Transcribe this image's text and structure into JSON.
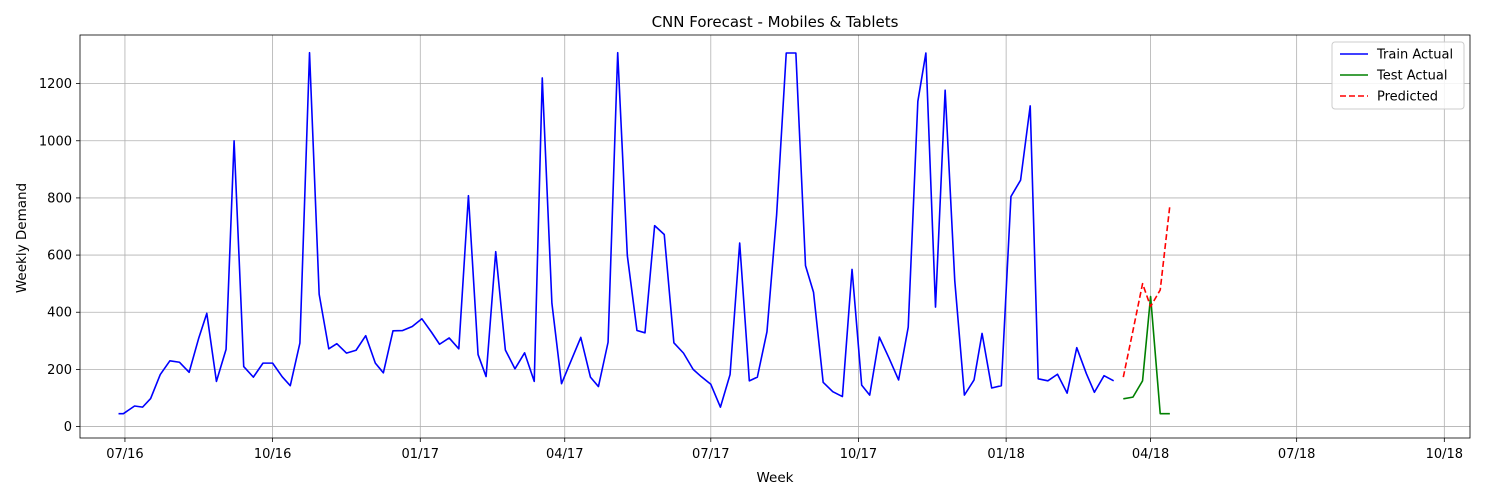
{
  "chart_data": {
    "type": "line",
    "title": "CNN Forecast - Mobiles & Tablets",
    "xlabel": "Week",
    "ylabel": "Weekly Demand",
    "x_axis": "date",
    "xlim": [
      "2016-06-03",
      "2018-10-17"
    ],
    "ylim": [
      -40,
      1370
    ],
    "grid": true,
    "legend_position": "top-right",
    "x_ticks": [
      {
        "date": "2016-07-01",
        "label": "07/16"
      },
      {
        "date": "2016-10-01",
        "label": "10/16"
      },
      {
        "date": "2017-01-01",
        "label": "01/17"
      },
      {
        "date": "2017-04-01",
        "label": "04/17"
      },
      {
        "date": "2017-07-01",
        "label": "07/17"
      },
      {
        "date": "2017-10-01",
        "label": "10/17"
      },
      {
        "date": "2018-01-01",
        "label": "01/18"
      },
      {
        "date": "2018-04-01",
        "label": "04/18"
      },
      {
        "date": "2018-07-01",
        "label": "07/18"
      },
      {
        "date": "2018-10-01",
        "label": "10/18"
      }
    ],
    "y_ticks": [
      0,
      200,
      400,
      600,
      800,
      1000,
      1200
    ],
    "series": [
      {
        "name": "Train Actual",
        "color": "#0000ff",
        "style": "solid",
        "points": [
          [
            "2016-06-27",
            45
          ],
          [
            "2016-06-30",
            45
          ],
          [
            "2016-07-07",
            72
          ],
          [
            "2016-07-12",
            68
          ],
          [
            "2016-07-17",
            98
          ],
          [
            "2016-07-23",
            182
          ],
          [
            "2016-07-29",
            230
          ],
          [
            "2016-08-04",
            225
          ],
          [
            "2016-08-10",
            190
          ],
          [
            "2016-08-16",
            310
          ],
          [
            "2016-08-21",
            396
          ],
          [
            "2016-08-27",
            158
          ],
          [
            "2016-09-02",
            270
          ],
          [
            "2016-09-07",
            1000
          ],
          [
            "2016-09-13",
            210
          ],
          [
            "2016-09-19",
            173
          ],
          [
            "2016-09-25",
            222
          ],
          [
            "2016-10-01",
            222
          ],
          [
            "2016-10-07",
            174
          ],
          [
            "2016-10-12",
            143
          ],
          [
            "2016-10-18",
            292
          ],
          [
            "2016-10-24",
            1308
          ],
          [
            "2016-10-30",
            463
          ],
          [
            "2016-11-05",
            272
          ],
          [
            "2016-11-10",
            290
          ],
          [
            "2016-11-16",
            257
          ],
          [
            "2016-11-22",
            267
          ],
          [
            "2016-11-28",
            318
          ],
          [
            "2016-12-04",
            222
          ],
          [
            "2016-12-09",
            188
          ],
          [
            "2016-12-15",
            335
          ],
          [
            "2016-12-21",
            336
          ],
          [
            "2016-12-27",
            350
          ],
          [
            "2017-01-02",
            377
          ],
          [
            "2017-01-08",
            330
          ],
          [
            "2017-01-13",
            288
          ],
          [
            "2017-01-19",
            310
          ],
          [
            "2017-01-25",
            272
          ],
          [
            "2017-01-31",
            808
          ],
          [
            "2017-02-06",
            252
          ],
          [
            "2017-02-11",
            175
          ],
          [
            "2017-02-17",
            612
          ],
          [
            "2017-02-23",
            268
          ],
          [
            "2017-03-01",
            202
          ],
          [
            "2017-03-07",
            258
          ],
          [
            "2017-03-13",
            158
          ],
          [
            "2017-03-18",
            1220
          ],
          [
            "2017-03-24",
            432
          ],
          [
            "2017-03-30",
            150
          ],
          [
            "2017-04-11",
            312
          ],
          [
            "2017-04-17",
            173
          ],
          [
            "2017-04-22",
            140
          ],
          [
            "2017-04-28",
            295
          ],
          [
            "2017-05-04",
            1308
          ],
          [
            "2017-05-10",
            598
          ],
          [
            "2017-05-16",
            336
          ],
          [
            "2017-05-21",
            328
          ],
          [
            "2017-05-27",
            703
          ],
          [
            "2017-06-02",
            672
          ],
          [
            "2017-06-08",
            293
          ],
          [
            "2017-06-14",
            257
          ],
          [
            "2017-06-20",
            200
          ],
          [
            "2017-06-25",
            175
          ],
          [
            "2017-07-01",
            148
          ],
          [
            "2017-07-07",
            68
          ],
          [
            "2017-07-13",
            182
          ],
          [
            "2017-07-19",
            642
          ],
          [
            "2017-07-25",
            160
          ],
          [
            "2017-07-30",
            173
          ],
          [
            "2017-08-05",
            332
          ],
          [
            "2017-08-11",
            740
          ],
          [
            "2017-08-17",
            1307
          ],
          [
            "2017-08-23",
            1307
          ],
          [
            "2017-08-29",
            563
          ],
          [
            "2017-09-03",
            470
          ],
          [
            "2017-09-09",
            155
          ],
          [
            "2017-09-15",
            122
          ],
          [
            "2017-09-21",
            105
          ],
          [
            "2017-09-27",
            550
          ],
          [
            "2017-10-03",
            145
          ],
          [
            "2017-10-08",
            110
          ],
          [
            "2017-10-14",
            313
          ],
          [
            "2017-10-20",
            240
          ],
          [
            "2017-10-26",
            163
          ],
          [
            "2017-11-01",
            348
          ],
          [
            "2017-11-07",
            1138
          ],
          [
            "2017-11-12",
            1307
          ],
          [
            "2017-11-18",
            418
          ],
          [
            "2017-11-24",
            1177
          ],
          [
            "2017-11-30",
            510
          ],
          [
            "2017-12-06",
            110
          ],
          [
            "2017-12-12",
            163
          ],
          [
            "2017-12-17",
            326
          ],
          [
            "2017-12-23",
            135
          ],
          [
            "2017-12-29",
            143
          ],
          [
            "2018-01-04",
            805
          ],
          [
            "2018-01-10",
            862
          ],
          [
            "2018-01-16",
            1122
          ],
          [
            "2018-01-21",
            167
          ],
          [
            "2018-01-27",
            160
          ],
          [
            "2018-02-02",
            183
          ],
          [
            "2018-02-08",
            117
          ],
          [
            "2018-02-14",
            276
          ],
          [
            "2018-02-20",
            185
          ],
          [
            "2018-02-25",
            120
          ],
          [
            "2018-03-03",
            178
          ],
          [
            "2018-03-09",
            160
          ]
        ]
      },
      {
        "name": "Test Actual",
        "color": "#008000",
        "style": "solid",
        "points": [
          [
            "2018-03-15",
            97
          ],
          [
            "2018-03-21",
            103
          ],
          [
            "2018-03-27",
            160
          ],
          [
            "2018-04-01",
            455
          ],
          [
            "2018-04-07",
            45
          ],
          [
            "2018-04-13",
            45
          ]
        ]
      },
      {
        "name": "Predicted",
        "color": "#ff0000",
        "style": "dashed",
        "points": [
          [
            "2018-03-15",
            173
          ],
          [
            "2018-03-21",
            335
          ],
          [
            "2018-03-27",
            500
          ],
          [
            "2018-04-01",
            420
          ],
          [
            "2018-04-07",
            478
          ],
          [
            "2018-04-13",
            773
          ]
        ]
      }
    ]
  }
}
